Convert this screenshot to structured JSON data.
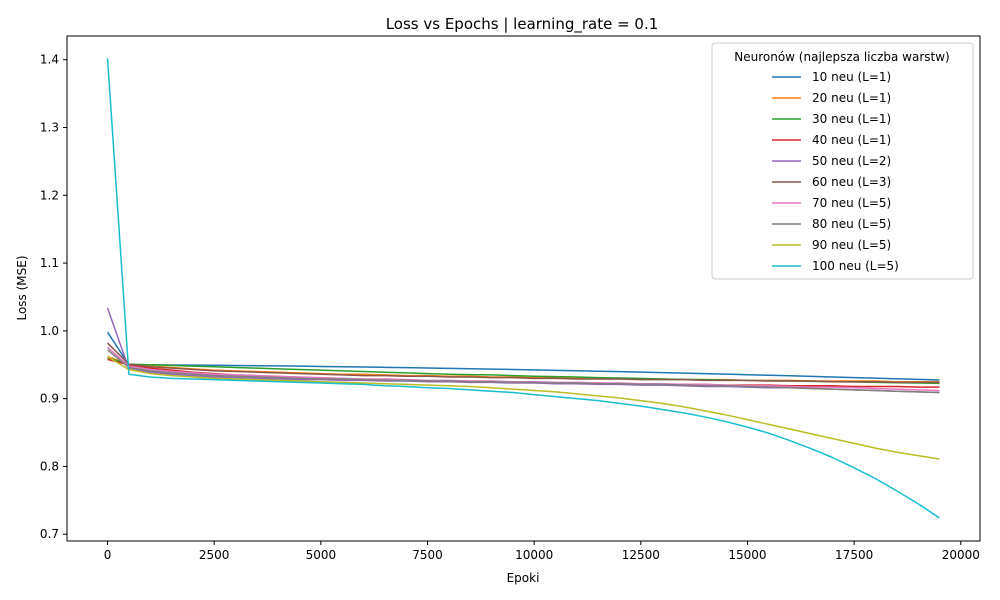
{
  "chart_data": {
    "type": "line",
    "title": "Loss vs Epochs | learning_rate = 0.1",
    "xlabel": "Epoki",
    "ylabel": "Loss (MSE)",
    "xlim": [
      -950,
      20450
    ],
    "ylim": [
      0.69,
      1.435
    ],
    "xticks": [
      0,
      2500,
      5000,
      7500,
      10000,
      12500,
      15000,
      17500,
      20000
    ],
    "yticks": [
      0.7,
      0.8,
      0.9,
      1.0,
      1.1,
      1.2,
      1.3,
      1.4
    ],
    "ytick_labels": [
      "0.7",
      "0.8",
      "0.9",
      "1.0",
      "1.1",
      "1.2",
      "1.3",
      "1.4"
    ],
    "grid": false,
    "legend": {
      "title": "Neuronów (najlepsza liczba warstw)",
      "position": "top-right"
    },
    "x": [
      0,
      500,
      1000,
      1500,
      2000,
      2500,
      3000,
      3500,
      4000,
      4500,
      5000,
      5500,
      6000,
      6500,
      7000,
      7500,
      8000,
      8500,
      9000,
      9500,
      10000,
      10500,
      11000,
      11500,
      12000,
      12500,
      13000,
      13500,
      14000,
      14500,
      15000,
      15500,
      16000,
      16500,
      17000,
      17500,
      18000,
      18500,
      19000,
      19500
    ],
    "series": [
      {
        "name": "10 neu (L=1)",
        "color": "#1f77b4",
        "values": [
          0.998,
          0.95,
          0.95,
          0.9497,
          0.9495,
          0.9492,
          0.9489,
          0.9486,
          0.9483,
          0.9479,
          0.9475,
          0.9471,
          0.9467,
          0.9462,
          0.9457,
          0.9452,
          0.9447,
          0.9442,
          0.9436,
          0.943,
          0.9424,
          0.9418,
          0.9412,
          0.9405,
          0.9398,
          0.9391,
          0.9384,
          0.9377,
          0.9369,
          0.9361,
          0.9353,
          0.9345,
          0.9337,
          0.9328,
          0.932,
          0.9311,
          0.9302,
          0.9293,
          0.9284,
          0.9275
        ]
      },
      {
        "name": "20 neu (L=1)",
        "color": "#ff7f0e",
        "values": [
          0.962,
          0.951,
          0.948,
          0.946,
          0.944,
          0.942,
          0.941,
          0.94,
          0.939,
          0.938,
          0.937,
          0.936,
          0.936,
          0.935,
          0.934,
          0.934,
          0.933,
          0.933,
          0.932,
          0.932,
          0.931,
          0.931,
          0.93,
          0.93,
          0.93,
          0.929,
          0.929,
          0.928,
          0.928,
          0.928,
          0.927,
          0.927,
          0.927,
          0.926,
          0.926,
          0.926,
          0.926,
          0.925,
          0.925,
          0.925
        ]
      },
      {
        "name": "30 neu (L=1)",
        "color": "#2ca02c",
        "values": [
          0.96,
          0.951,
          0.95,
          0.949,
          0.948,
          0.947,
          0.946,
          0.945,
          0.944,
          0.943,
          0.942,
          0.941,
          0.94,
          0.939,
          0.938,
          0.937,
          0.936,
          0.9355,
          0.935,
          0.934,
          0.933,
          0.9325,
          0.932,
          0.931,
          0.9305,
          0.93,
          0.929,
          0.9285,
          0.928,
          0.9275,
          0.927,
          0.9265,
          0.926,
          0.9255,
          0.925,
          0.9245,
          0.924,
          0.9235,
          0.923,
          0.9225
        ]
      },
      {
        "name": "40 neu (L=1)",
        "color": "#d62728",
        "values": [
          0.958,
          0.95,
          0.945,
          0.942,
          0.939,
          0.937,
          0.935,
          0.934,
          0.932,
          0.931,
          0.93,
          0.929,
          0.928,
          0.928,
          0.927,
          0.926,
          0.926,
          0.925,
          0.925,
          0.924,
          0.924,
          0.923,
          0.923,
          0.923,
          0.922,
          0.922,
          0.921,
          0.921,
          0.921,
          0.92,
          0.92,
          0.92,
          0.919,
          0.919,
          0.919,
          0.918,
          0.918,
          0.918,
          0.917,
          0.917
        ]
      },
      {
        "name": "50 neu (L=2)",
        "color": "#9467bd",
        "values": [
          1.034,
          0.944,
          0.939,
          0.936,
          0.934,
          0.932,
          0.931,
          0.93,
          0.929,
          0.928,
          0.928,
          0.927,
          0.927,
          0.926,
          0.926,
          0.925,
          0.925,
          0.924,
          0.924,
          0.923,
          0.923,
          0.922,
          0.922,
          0.921,
          0.921,
          0.92,
          0.92,
          0.919,
          0.918,
          0.918,
          0.917,
          0.916,
          0.916,
          0.915,
          0.914,
          0.913,
          0.912,
          0.911,
          0.91,
          0.909
        ]
      },
      {
        "name": "60 neu (L=3)",
        "color": "#8c564b",
        "values": [
          0.982,
          0.951,
          0.947,
          0.945,
          0.943,
          0.941,
          0.94,
          0.939,
          0.938,
          0.937,
          0.936,
          0.935,
          0.934,
          0.934,
          0.933,
          0.933,
          0.932,
          0.932,
          0.931,
          0.931,
          0.93,
          0.93,
          0.929,
          0.929,
          0.929,
          0.928,
          0.928,
          0.928,
          0.927,
          0.927,
          0.927,
          0.926,
          0.926,
          0.926,
          0.925,
          0.925,
          0.925,
          0.924,
          0.924,
          0.924
        ]
      },
      {
        "name": "70 neu (L=5)",
        "color": "#e377c2",
        "values": [
          0.976,
          0.948,
          0.943,
          0.94,
          0.938,
          0.936,
          0.935,
          0.934,
          0.933,
          0.932,
          0.931,
          0.93,
          0.929,
          0.929,
          0.928,
          0.927,
          0.927,
          0.926,
          0.926,
          0.925,
          0.925,
          0.924,
          0.924,
          0.923,
          0.923,
          0.922,
          0.922,
          0.921,
          0.921,
          0.92,
          0.919,
          0.919,
          0.918,
          0.917,
          0.917,
          0.916,
          0.915,
          0.914,
          0.913,
          0.912
        ]
      },
      {
        "name": "80 neu (L=5)",
        "color": "#7f7f7f",
        "values": [
          0.972,
          0.946,
          0.941,
          0.938,
          0.936,
          0.934,
          0.933,
          0.932,
          0.931,
          0.93,
          0.929,
          0.929,
          0.928,
          0.927,
          0.927,
          0.926,
          0.926,
          0.925,
          0.925,
          0.924,
          0.924,
          0.923,
          0.923,
          0.922,
          0.922,
          0.921,
          0.921,
          0.92,
          0.919,
          0.919,
          0.918,
          0.917,
          0.916,
          0.915,
          0.914,
          0.913,
          0.912,
          0.911,
          0.91,
          0.909
        ]
      },
      {
        "name": "90 neu (L=5)",
        "color": "#bcbd22",
        "values": [
          0.962,
          0.943,
          0.937,
          0.934,
          0.932,
          0.93,
          0.929,
          0.928,
          0.927,
          0.926,
          0.925,
          0.924,
          0.923,
          0.922,
          0.921,
          0.92,
          0.919,
          0.918,
          0.916,
          0.914,
          0.912,
          0.91,
          0.907,
          0.904,
          0.901,
          0.897,
          0.893,
          0.888,
          0.882,
          0.876,
          0.869,
          0.862,
          0.855,
          0.848,
          0.841,
          0.834,
          0.827,
          0.821,
          0.816,
          0.811
        ]
      },
      {
        "name": "100 neu (L=5)",
        "color": "#17becf",
        "values": [
          1.402,
          0.936,
          0.932,
          0.93,
          0.929,
          0.928,
          0.927,
          0.926,
          0.925,
          0.924,
          0.923,
          0.922,
          0.921,
          0.919,
          0.918,
          0.916,
          0.915,
          0.913,
          0.911,
          0.909,
          0.906,
          0.903,
          0.9,
          0.897,
          0.893,
          0.889,
          0.884,
          0.879,
          0.873,
          0.866,
          0.858,
          0.849,
          0.838,
          0.826,
          0.813,
          0.798,
          0.782,
          0.764,
          0.745,
          0.724
        ]
      }
    ]
  }
}
